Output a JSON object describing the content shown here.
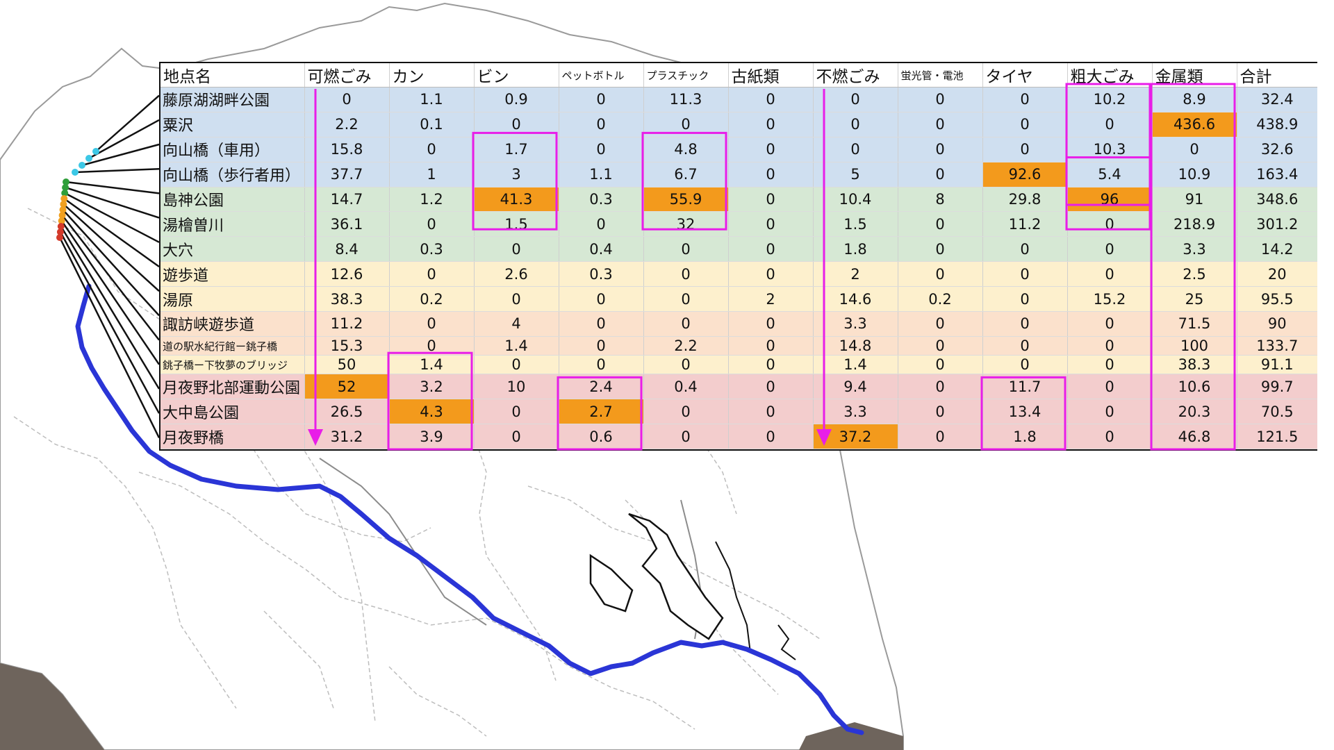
{
  "colors": {
    "map_outline": "#9a9a9a",
    "map_boundaries": "#bdbdbd",
    "river": "#2a35d6",
    "connector_lines": "#111111",
    "highlight_box": "#e81ee8",
    "arrow": "#e81ee8",
    "highlight_cell": "#f39a1c",
    "group_blue": "#cfdff0",
    "group_green": "#d6e8d4",
    "group_yellow": "#fdf0cd",
    "group_peach": "#fbe1cc",
    "group_pink": "#f3cdcd",
    "marker_cyan": "#3cc8e6",
    "marker_green": "#2e9e3a",
    "marker_orange": "#f0a020",
    "marker_red": "#d43a2a"
  },
  "chart_data": {
    "type": "table",
    "columns": [
      "地点名",
      "可燃ごみ",
      "カン",
      "ビン",
      "ペットボトル",
      "プラスチック",
      "古紙類",
      "不燃ごみ",
      "蛍光管・電池",
      "タイヤ",
      "粗大ごみ",
      "金属類",
      "合計"
    ],
    "rows": [
      {
        "name": "藤原湖湖畔公園",
        "group": "blue",
        "values": [
          "0",
          "1.1",
          "0.9",
          "0",
          "11.3",
          "0",
          "0",
          "0",
          "0",
          "10.2",
          "8.9",
          "32.4"
        ]
      },
      {
        "name": "粟沢",
        "group": "blue",
        "values": [
          "2.2",
          "0.1",
          "0",
          "0",
          "0",
          "0",
          "0",
          "0",
          "0",
          "0",
          "436.6",
          "438.9"
        ]
      },
      {
        "name": "向山橋（車用）",
        "group": "blue",
        "values": [
          "15.8",
          "0",
          "1.7",
          "0",
          "4.8",
          "0",
          "0",
          "0",
          "0",
          "10.3",
          "0",
          "32.6"
        ]
      },
      {
        "name": "向山橋（歩行者用）",
        "group": "blue",
        "values": [
          "37.7",
          "1",
          "3",
          "1.1",
          "6.7",
          "0",
          "5",
          "0",
          "92.6",
          "5.4",
          "10.9",
          "163.4"
        ]
      },
      {
        "name": "島神公園",
        "group": "green",
        "values": [
          "14.7",
          "1.2",
          "41.3",
          "0.3",
          "55.9",
          "0",
          "10.4",
          "8",
          "29.8",
          "96",
          "91",
          "348.6"
        ]
      },
      {
        "name": "湯檜曽川",
        "group": "green",
        "values": [
          "36.1",
          "0",
          "1.5",
          "0",
          "32",
          "0",
          "1.5",
          "0",
          "11.2",
          "0",
          "218.9",
          "301.2"
        ]
      },
      {
        "name": "大穴",
        "group": "green",
        "values": [
          "8.4",
          "0.3",
          "0",
          "0.4",
          "0",
          "0",
          "1.8",
          "0",
          "0",
          "0",
          "3.3",
          "14.2"
        ]
      },
      {
        "name": "遊歩道",
        "group": "yellow",
        "values": [
          "12.6",
          "0",
          "2.6",
          "0.3",
          "0",
          "0",
          "2",
          "0",
          "0",
          "0",
          "2.5",
          "20"
        ]
      },
      {
        "name": "湯原",
        "group": "yellow",
        "values": [
          "38.3",
          "0.2",
          "0",
          "0",
          "0",
          "2",
          "14.6",
          "0.2",
          "0",
          "15.2",
          "25",
          "95.5"
        ]
      },
      {
        "name": "諏訪峡遊歩道",
        "group": "peach",
        "values": [
          "11.2",
          "0",
          "4",
          "0",
          "0",
          "0",
          "3.3",
          "0",
          "0",
          "0",
          "71.5",
          "90"
        ]
      },
      {
        "name": "道の駅水紀行館ー銚子橋",
        "group": "peach",
        "small": true,
        "values": [
          "15.3",
          "0",
          "1.4",
          "0",
          "2.2",
          "0",
          "14.8",
          "0",
          "0",
          "0",
          "100",
          "133.7"
        ]
      },
      {
        "name": "銚子橋ー下牧夢のブリッジ",
        "group": "yellow",
        "small": true,
        "values": [
          "50",
          "1.4",
          "0",
          "0",
          "0",
          "0",
          "1.4",
          "0",
          "0",
          "0",
          "38.3",
          "91.1"
        ]
      },
      {
        "name": "月夜野北部運動公園",
        "group": "pink",
        "values": [
          "52",
          "3.2",
          "10",
          "2.4",
          "0.4",
          "0",
          "9.4",
          "0",
          "11.7",
          "0",
          "10.6",
          "99.7"
        ]
      },
      {
        "name": "大中島公園",
        "group": "pink",
        "values": [
          "26.5",
          "4.3",
          "0",
          "2.7",
          "0",
          "0",
          "3.3",
          "0",
          "13.4",
          "0",
          "20.3",
          "70.5"
        ]
      },
      {
        "name": "月夜野橋",
        "group": "pink",
        "values": [
          "31.2",
          "3.9",
          "0",
          "0.6",
          "0",
          "0",
          "37.2",
          "0",
          "1.8",
          "0",
          "46.8",
          "121.5"
        ]
      }
    ],
    "highlighted_cells": [
      [
        1,
        10
      ],
      [
        3,
        8
      ],
      [
        4,
        2
      ],
      [
        4,
        4
      ],
      [
        4,
        9
      ],
      [
        12,
        0
      ],
      [
        13,
        1
      ],
      [
        13,
        3
      ],
      [
        14,
        6
      ]
    ],
    "boxed_ranges": [
      {
        "col": 2,
        "rows": [
          2,
          5
        ]
      },
      {
        "col": 4,
        "rows": [
          2,
          5
        ]
      },
      {
        "col": 9,
        "rows": [
          3,
          5
        ]
      },
      {
        "col": 9,
        "rows": [
          0,
          4
        ]
      },
      {
        "col": 10,
        "rows": [
          0,
          14
        ]
      },
      {
        "col": 1,
        "rows": [
          11,
          14
        ]
      },
      {
        "col": 3,
        "rows": [
          12,
          14
        ]
      },
      {
        "col": 8,
        "rows": [
          12,
          14
        ]
      }
    ],
    "arrows": [
      {
        "col": 0,
        "from_row": 0,
        "to_row": 14
      },
      {
        "col": 6,
        "from_row": 0,
        "to_row": 14
      }
    ]
  }
}
